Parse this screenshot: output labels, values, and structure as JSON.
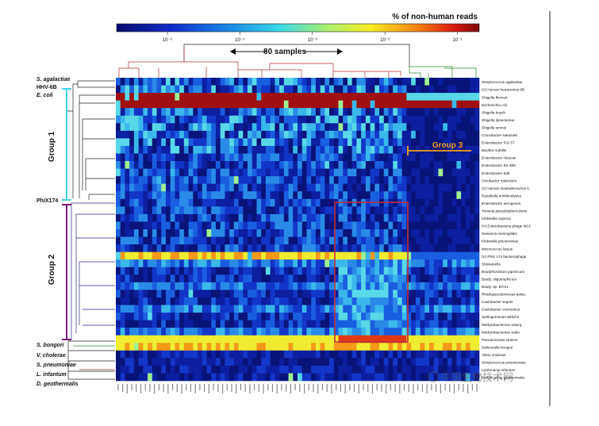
{
  "figure": {
    "colorbar_title": "% of non-human reads",
    "colorbar_ticks": [
      "10⁻⁵",
      "10⁻⁴",
      "10⁻³",
      "10⁻²",
      "10⁻¹"
    ],
    "samples_label": "80 samples",
    "group_labels": [
      "Group 1",
      "Group 2",
      "Group 3"
    ],
    "left_taxa": [
      "S. agalactiae",
      "HHV-6B",
      "E. coli",
      "PhiX174",
      "S. bongori",
      "V. cholerae",
      "S. pneumoniae",
      "L. infantum",
      "D. geothermalis"
    ],
    "watermark": "中国生物技术网",
    "colors": {
      "group1_bracket": "#40d0e0",
      "group2_bracket": "#7a1f7a",
      "group3_bracket": "#f0a020",
      "highlight_box": "#c0303a",
      "dendro_red": "#b03030",
      "dendro_green": "#2a8a2a",
      "dendro_blue": "#2a2a90"
    }
  },
  "chart_data": {
    "type": "heatmap",
    "title": "% of non-human reads",
    "xlabel": "80 samples",
    "ylabel": "",
    "color_scale": "log",
    "color_range": [
      1e-05,
      0.1
    ],
    "n_samples": 80,
    "groups": [
      {
        "name": "Group 1",
        "from": "Streptococcus agalactiae",
        "to": "PhiX 174 bacteriophage"
      },
      {
        "name": "Group 2",
        "from": "Bradyrhizobium japonicum",
        "to": "Salmonella bongori"
      },
      {
        "name": "Group 3",
        "samples": "right sample cluster"
      }
    ],
    "rows": [
      "Streptococcus agalactiae",
      "(V) Human herpesvirus 6B",
      "Shigella flexneri",
      "Escherichia coli",
      "Shigella boydii",
      "Shigella dysenteriae",
      "Shigella sonnei",
      "Cronobacter sakazakii",
      "Enterobacter FGI 57",
      "Bacillus subtilis",
      "Enterobacter cloacae",
      "Enterobacter R4-368",
      "Enterobacter 638",
      "Citrobacter rodentium",
      "(V) Human mastadenovirus C",
      "Raoultella ornithinolytica",
      "Enterobacter aerogenes",
      "Yersinia pseudotuberculosis",
      "Klebsiella oxytoca",
      "(V) Enterobacteria phage M13",
      "Neisseria meningitidis",
      "Klebsiella pneumoniae",
      "Micrococcus luteus",
      "(V) PhiX 174 bacteriophage",
      "Shewanella",
      "Bradyrhizobium japonicum",
      "Brady. oligotrophicum",
      "Brady. sp. BTAi1",
      "Rhodopseudomonas palus.",
      "Caulobacter segnis",
      "Caulobacter crescentus",
      "Sphingomonas wittichii",
      "Methylobacterium extorq.",
      "Methylobacterium radio.",
      "Pseudomonas stutzeri",
      "Salmonella bongori",
      "Vibrio cholerae",
      "Streptococcus pneumoniae",
      "Leishmania infantum",
      "Deinococcus geothermalis"
    ]
  }
}
